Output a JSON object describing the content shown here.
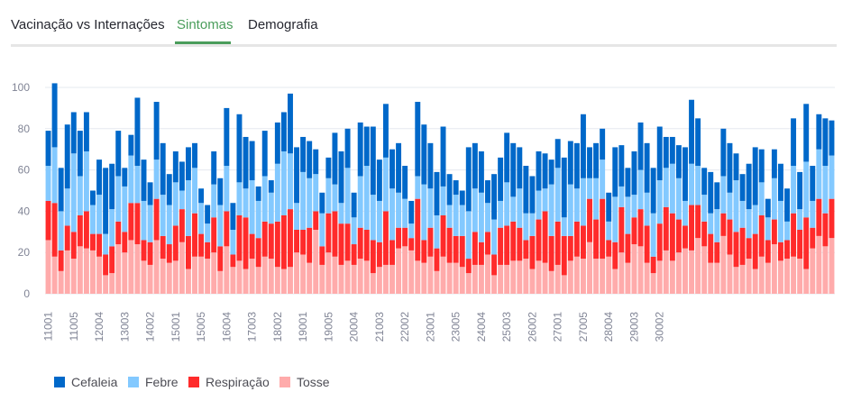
{
  "tabs": {
    "items": [
      {
        "label": "Vacinação vs Internações",
        "active": false
      },
      {
        "label": "Sintomas",
        "active": true
      },
      {
        "label": "Demografia",
        "active": false
      }
    ],
    "accent_color": "#4a9d5b"
  },
  "chart_data": {
    "type": "bar",
    "stacked": true,
    "ylim": [
      0,
      110
    ],
    "y_ticks": [
      0,
      20,
      40,
      60,
      80,
      100
    ],
    "grid": true,
    "legend_position": "bottom-left",
    "x_tick_labels": [
      "11001",
      "11005",
      "12004",
      "13003",
      "14002",
      "15001",
      "15005",
      "16004",
      "17003",
      "18002",
      "19001",
      "19005",
      "20004",
      "21003",
      "22002",
      "23001",
      "23005",
      "24004",
      "25003",
      "26002",
      "27001",
      "27005",
      "28004",
      "29003",
      "30002"
    ],
    "series": [
      {
        "name": "Cefaleia",
        "color": "#0068c9",
        "values": [
          17,
          31,
          21,
          31,
          20,
          22,
          19,
          7,
          17,
          32,
          22,
          22,
          9,
          10,
          33,
          20,
          11,
          28,
          25,
          15,
          15,
          14,
          16,
          12,
          7,
          9,
          16,
          13,
          28,
          13,
          33,
          25,
          19,
          7,
          22,
          6,
          20,
          19,
          29,
          27,
          17,
          18,
          12,
          10,
          10,
          25,
          25,
          19,
          12,
          26,
          19,
          33,
          20,
          26,
          19,
          24,
          16,
          11,
          36,
          29,
          22,
          21,
          29,
          15,
          7,
          7,
          31,
          22,
          20,
          11,
          22,
          21,
          24,
          26,
          20,
          23,
          18,
          19,
          17,
          12,
          14,
          29,
          21,
          22,
          31,
          15,
          17,
          15,
          14,
          24,
          20,
          14,
          21,
          23,
          24,
          22,
          26,
          15,
          13,
          16,
          26,
          31,
          23,
          13,
          20,
          13,
          23,
          24,
          13,
          13,
          22,
          28,
          16,
          9,
          14,
          18,
          16,
          23,
          18,
          28,
          17,
          17,
          23,
          17
        ]
      },
      {
        "name": "Febre",
        "color": "#83c9ff",
        "values": [
          17,
          27,
          19,
          18,
          38,
          19,
          29,
          14,
          19,
          10,
          18,
          22,
          22,
          23,
          18,
          19,
          18,
          19,
          20,
          19,
          21,
          9,
          27,
          22,
          15,
          9,
          16,
          20,
          22,
          12,
          16,
          14,
          26,
          18,
          22,
          15,
          28,
          31,
          27,
          13,
          28,
          24,
          18,
          16,
          17,
          13,
          10,
          27,
          13,
          25,
          31,
          22,
          20,
          26,
          25,
          17,
          14,
          7,
          11,
          27,
          19,
          16,
          14,
          11,
          20,
          15,
          23,
          21,
          24,
          14,
          17,
          13,
          21,
          12,
          19,
          13,
          11,
          14,
          11,
          25,
          26,
          9,
          25,
          16,
          23,
          10,
          20,
          19,
          9,
          22,
          10,
          18,
          11,
          19,
          16,
          21,
          21,
          19,
          24,
          20,
          12,
          20,
          19,
          13,
          10,
          16,
          18,
          13,
          25,
          13,
          14,
          14,
          16,
          11,
          20,
          20,
          9,
          23,
          10,
          27,
          13,
          24,
          23,
          21
        ]
      },
      {
        "name": "Respiração",
        "color": "#ff2b2b",
        "values": [
          19,
          26,
          10,
          12,
          13,
          15,
          18,
          8,
          11,
          10,
          13,
          11,
          10,
          18,
          20,
          10,
          11,
          20,
          11,
          9,
          17,
          16,
          16,
          21,
          11,
          8,
          17,
          12,
          17,
          6,
          22,
          25,
          12,
          14,
          17,
          17,
          22,
          26,
          28,
          11,
          12,
          17,
          9,
          9,
          19,
          22,
          20,
          18,
          10,
          15,
          15,
          16,
          12,
          26,
          12,
          10,
          9,
          6,
          30,
          11,
          14,
          11,
          20,
          17,
          13,
          15,
          7,
          16,
          11,
          11,
          10,
          18,
          19,
          19,
          16,
          9,
          16,
          20,
          25,
          17,
          21,
          19,
          12,
          17,
          16,
          21,
          19,
          29,
          8,
          13,
          22,
          14,
          13,
          18,
          18,
          8,
          18,
          21,
          23,
          16,
          11,
          22,
          16,
          12,
          14,
          10,
          11,
          17,
          17,
          18,
          10,
          17,
          20,
          11,
          12,
          9,
          9,
          21,
          14,
          25,
          10,
          18,
          16,
          19
        ]
      },
      {
        "name": "Tosse",
        "color": "#ffabab",
        "values": [
          26,
          18,
          11,
          21,
          17,
          23,
          22,
          21,
          18,
          9,
          10,
          24,
          20,
          26,
          24,
          16,
          14,
          26,
          17,
          15,
          16,
          25,
          12,
          18,
          18,
          17,
          20,
          11,
          23,
          13,
          16,
          12,
          17,
          13,
          18,
          17,
          13,
          12,
          13,
          20,
          19,
          15,
          31,
          14,
          20,
          18,
          14,
          16,
          14,
          17,
          16,
          10,
          13,
          14,
          14,
          22,
          23,
          21,
          16,
          15,
          18,
          11,
          18,
          15,
          15,
          13,
          10,
          14,
          14,
          19,
          9,
          14,
          14,
          16,
          16,
          17,
          12,
          16,
          15,
          11,
          14,
          9,
          16,
          18,
          17,
          25,
          17,
          17,
          18,
          12,
          20,
          15,
          24,
          23,
          15,
          10,
          16,
          21,
          16,
          20,
          22,
          21,
          27,
          23,
          15,
          15,
          28,
          19,
          13,
          14,
          17,
          12,
          18,
          15,
          24,
          16,
          17,
          18,
          17,
          12,
          22,
          28,
          23,
          27
        ]
      }
    ]
  }
}
